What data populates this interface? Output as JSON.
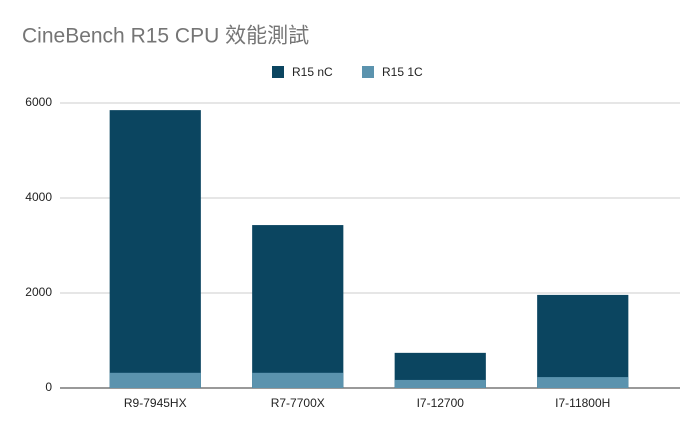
{
  "chart_data": {
    "type": "bar",
    "title": "CineBench R15 CPU 效能測試",
    "categories": [
      "R9-7945HX",
      "R7-7700X",
      "I7-12700",
      "I7-11800H"
    ],
    "series": [
      {
        "name": "R15 nC",
        "color": "#0b4560",
        "values": [
          5850,
          3430,
          740,
          1960
        ]
      },
      {
        "name": "R15 1C",
        "color": "#5b93ae",
        "values": [
          320,
          320,
          170,
          230
        ]
      }
    ],
    "ylim": [
      0,
      6000
    ],
    "yticks": [
      0,
      2000,
      4000,
      6000
    ],
    "grid": true,
    "legend": "top"
  }
}
